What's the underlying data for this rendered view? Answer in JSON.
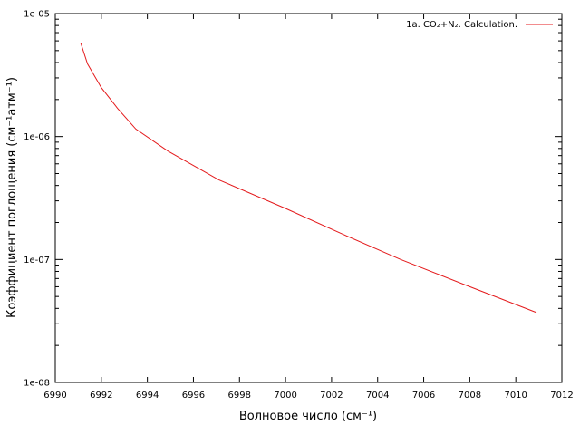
{
  "chart_data": {
    "type": "line",
    "title": "",
    "xlabel": "Волновое число (см⁻¹)",
    "ylabel": "Коэффициент поглощения (см⁻¹атм⁻¹)",
    "x_scale": "linear",
    "y_scale": "log",
    "xlim": [
      6990,
      7012
    ],
    "ylim": [
      1e-08,
      1e-05
    ],
    "x_ticks": [
      6990,
      6992,
      6994,
      6996,
      6998,
      7000,
      7002,
      7004,
      7006,
      7008,
      7010,
      7012
    ],
    "x_tick_labels": [
      "6990",
      "6992",
      "6994",
      "6996",
      "6998",
      "7000",
      "7002",
      "7004",
      "7006",
      "7008",
      "7010",
      "7012"
    ],
    "y_ticks": [
      1e-08,
      1e-07,
      1e-06,
      1e-05
    ],
    "y_tick_labels": [
      "1e-08",
      "1e-07",
      "1e-06",
      "1e-05"
    ],
    "grid": false,
    "legend_position": "top-right",
    "series": [
      {
        "name": "1a. CO₂+N₂. Calculation.",
        "color": "#e41a1c",
        "x": [
          6991.1,
          6991.4,
          6992.0,
          6992.7,
          6993.5,
          6994.9,
          6997.1,
          7000.0,
          7002.5,
          7005.0,
          7008.0,
          7010.9
        ],
        "y": [
          5.8e-06,
          3.9e-06,
          2.5e-06,
          1.7e-06,
          1.15e-06,
          7.6e-07,
          4.45e-07,
          2.6e-07,
          1.6e-07,
          1e-07,
          6e-08,
          3.7e-08
        ]
      }
    ]
  }
}
